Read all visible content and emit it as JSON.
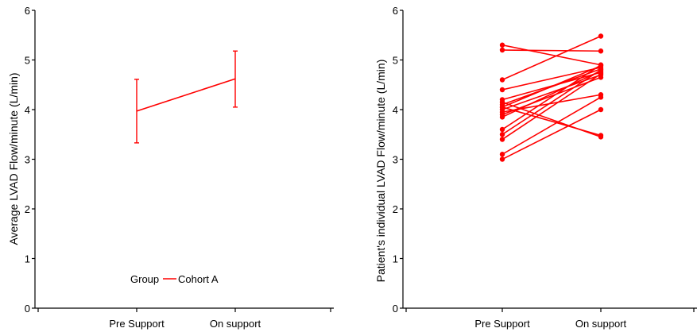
{
  "colors": {
    "series": "#ff0000",
    "axis": "#000000",
    "background": "#ffffff"
  },
  "chart_data": [
    {
      "type": "line",
      "title": "",
      "xlabel": "",
      "ylabel": "Average LVAD Flow/minute (L/min)",
      "categories": [
        "Pre Support",
        "On support"
      ],
      "ylim": [
        0,
        6
      ],
      "yticks": [
        "0",
        "1",
        "2",
        "3",
        "4",
        "5",
        "6"
      ],
      "grid": false,
      "legend": {
        "title": "Group",
        "entries": [
          "Cohort A"
        ],
        "placement": "bottom-center"
      },
      "series": [
        {
          "name": "Cohort A",
          "values": [
            3.97,
            4.62
          ],
          "error_low": [
            3.33,
            4.05
          ],
          "error_high": [
            4.61,
            5.18
          ]
        }
      ]
    },
    {
      "type": "line",
      "title": "",
      "xlabel": "",
      "ylabel": "Patient's individual LVAD Flow/minute (L/min)",
      "categories": [
        "Pre Support",
        "On support"
      ],
      "ylim": [
        0,
        6
      ],
      "yticks": [
        "0",
        "1",
        "2",
        "3",
        "4",
        "5",
        "6"
      ],
      "grid": false,
      "series": [
        {
          "values": [
            5.3,
            4.9
          ]
        },
        {
          "values": [
            5.2,
            5.18
          ]
        },
        {
          "values": [
            4.6,
            5.48
          ]
        },
        {
          "values": [
            4.4,
            4.85
          ]
        },
        {
          "values": [
            4.2,
            4.75
          ]
        },
        {
          "values": [
            4.15,
            3.45
          ]
        },
        {
          "values": [
            4.1,
            4.82
          ]
        },
        {
          "values": [
            4.05,
            4.88
          ]
        },
        {
          "values": [
            4.0,
            4.7
          ]
        },
        {
          "values": [
            3.95,
            4.3
          ]
        },
        {
          "values": [
            3.9,
            4.65
          ]
        },
        {
          "values": [
            3.85,
            4.78
          ]
        },
        {
          "values": [
            3.6,
            4.9
          ]
        },
        {
          "values": [
            3.5,
            4.8
          ]
        },
        {
          "values": [
            3.4,
            4.72
          ]
        },
        {
          "values": [
            3.1,
            4.25
          ]
        },
        {
          "values": [
            3.0,
            4.0
          ]
        },
        {
          "values": [
            4.05,
            3.48
          ]
        }
      ]
    }
  ]
}
